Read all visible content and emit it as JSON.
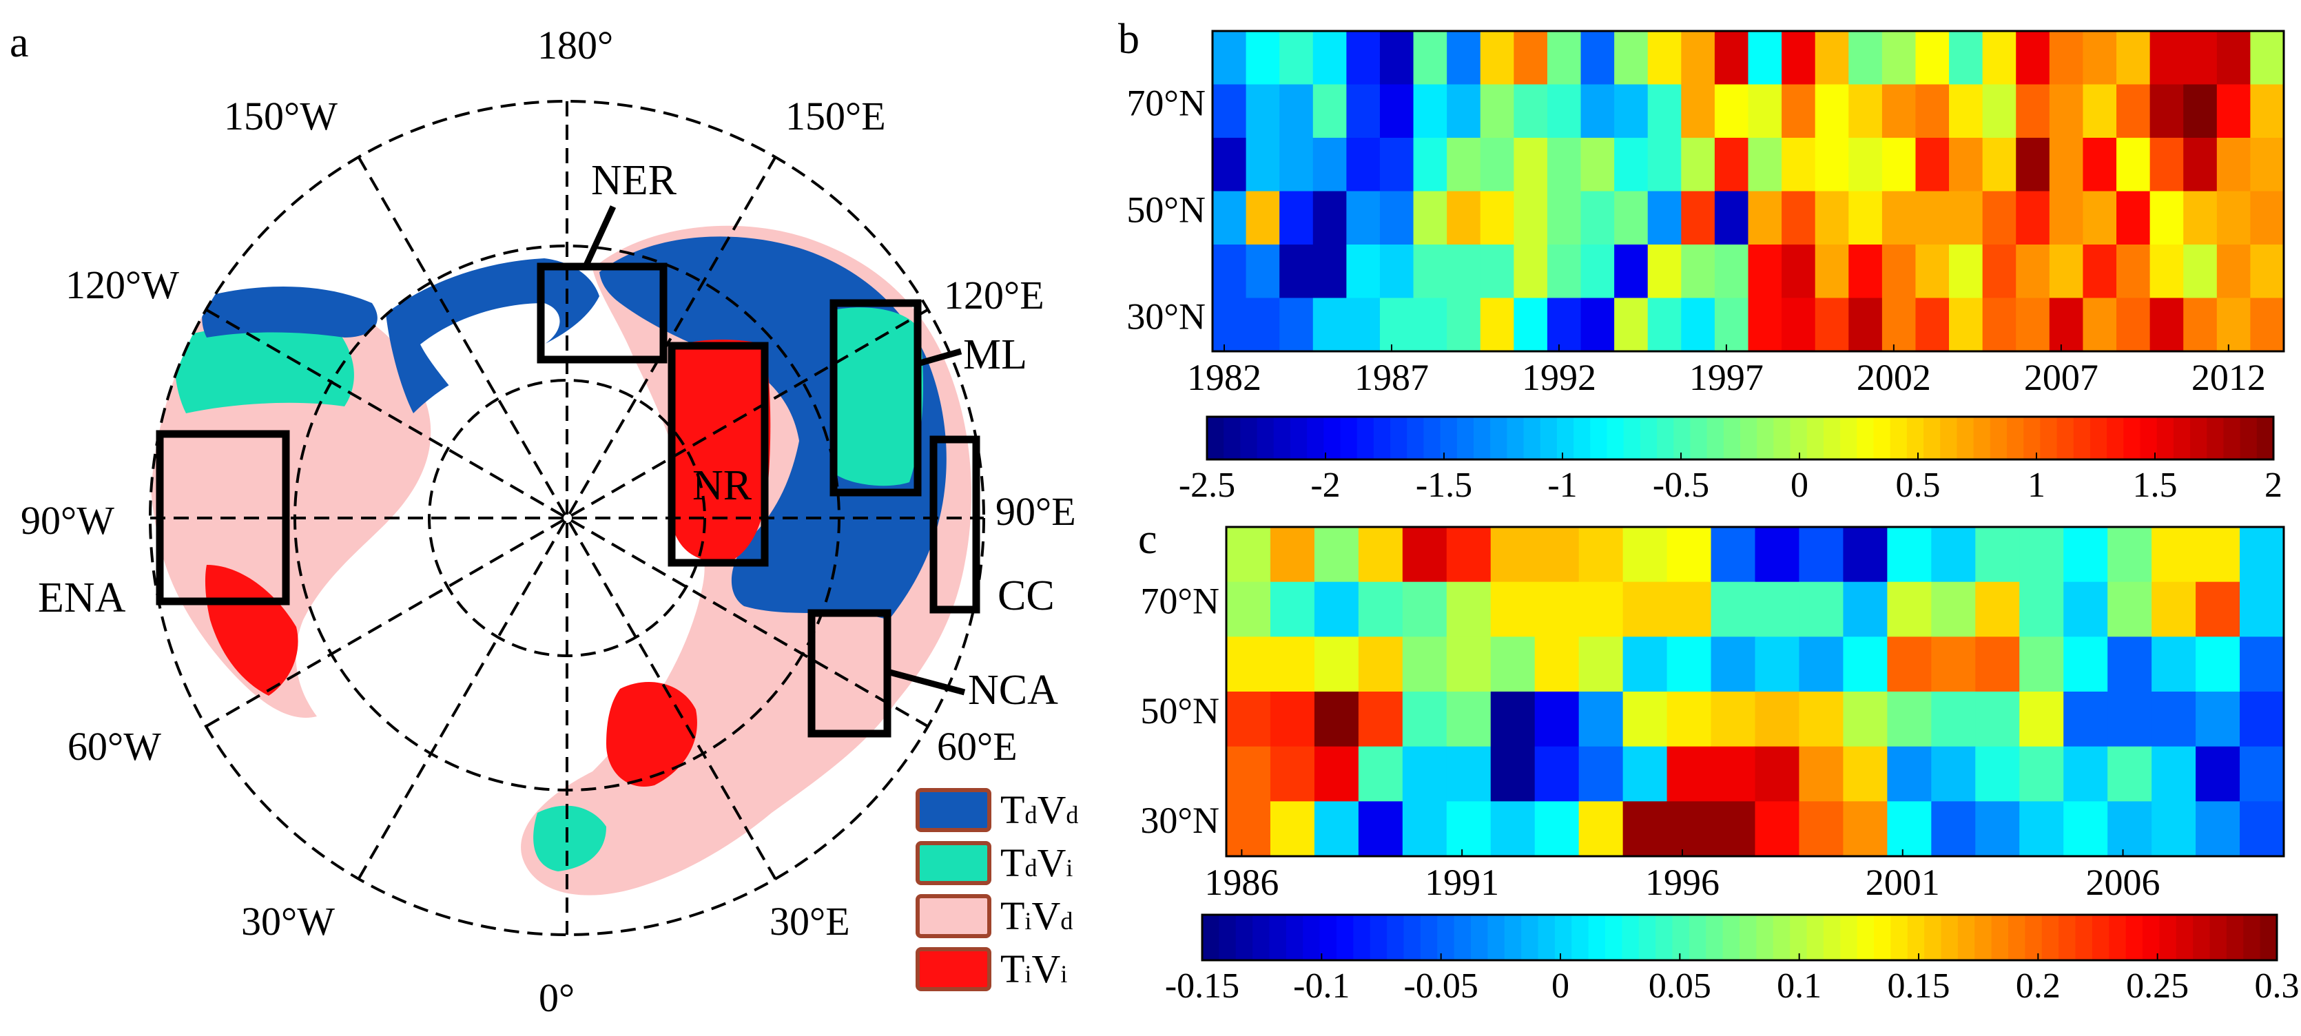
{
  "panel_a": {
    "panel_label": "a",
    "lon_labels": [
      "180°",
      "150°E",
      "120°E",
      "90°E",
      "60°E",
      "30°E",
      "0°",
      "30°W",
      "60°W",
      "90°W",
      "120°W",
      "150°W"
    ],
    "regions": [
      "NER",
      "ML",
      "NR",
      "CC",
      "NCA",
      "ENA"
    ],
    "legend": [
      {
        "main": "T",
        "sub": "d",
        "main2": "V",
        "sub2": "d",
        "color": "#1259b8"
      },
      {
        "main": "T",
        "sub": "d",
        "main2": "V",
        "sub2": "i",
        "color": "#19e0b4"
      },
      {
        "main": "T",
        "sub": "i",
        "main2": "V",
        "sub2": "d",
        "color": "#fbc6c6"
      },
      {
        "main": "T",
        "sub": "i",
        "main2": "V",
        "sub2": "i",
        "color": "#ff1010"
      }
    ]
  },
  "chart_data": [
    {
      "type": "heatmap",
      "panel": "b",
      "title": "",
      "x": [
        1982,
        1983,
        1984,
        1985,
        1986,
        1987,
        1988,
        1989,
        1990,
        1991,
        1992,
        1993,
        1994,
        1995,
        1996,
        1997,
        1998,
        1999,
        2000,
        2001,
        2002,
        2003,
        2004,
        2005,
        2006,
        2007,
        2008,
        2009,
        2010,
        2011,
        2012,
        2013
      ],
      "x_tick_labels": [
        "1982",
        "1987",
        "1992",
        "1997",
        "2002",
        "2007",
        "2012"
      ],
      "y_tick_labels": [
        "70°N",
        "50°N",
        "30°N"
      ],
      "rows_top_to_bottom": [
        "row1",
        "row2",
        "row3",
        "row4",
        "row5",
        "row6"
      ],
      "values": [
        [
          -1.2,
          -0.8,
          -0.6,
          -0.9,
          -1.8,
          -2.2,
          -0.4,
          -1.4,
          0.5,
          0.9,
          -0.3,
          -1.5,
          -0.2,
          0.4,
          0.7,
          1.6,
          -0.8,
          1.5,
          0.6,
          -0.3,
          -0.1,
          0.3,
          -0.5,
          0.4,
          1.5,
          0.9,
          0.8,
          0.6,
          1.6,
          1.6,
          1.7,
          0.0
        ],
        [
          -1.6,
          -1.1,
          -1.2,
          -0.5,
          -1.7,
          -2.0,
          -0.9,
          -1.1,
          -0.2,
          -0.5,
          -0.6,
          -1.2,
          -1.1,
          -0.6,
          0.7,
          0.3,
          0.2,
          0.9,
          0.3,
          0.5,
          0.8,
          0.9,
          0.4,
          0.1,
          1.0,
          0.8,
          0.5,
          1.0,
          1.8,
          2.0,
          1.4,
          0.6
        ],
        [
          -2.2,
          -1.1,
          -1.2,
          -1.3,
          -1.8,
          -1.7,
          -0.7,
          -0.2,
          -0.3,
          0.1,
          -0.3,
          -0.1,
          -0.7,
          -0.6,
          0.0,
          1.3,
          -0.1,
          0.4,
          0.3,
          0.2,
          0.3,
          1.3,
          0.8,
          0.5,
          1.9,
          0.8,
          1.4,
          0.3,
          1.1,
          1.7,
          0.8,
          0.7
        ],
        [
          -1.2,
          0.6,
          -1.8,
          -2.3,
          -1.3,
          -1.4,
          0.0,
          0.6,
          0.4,
          0.1,
          -0.3,
          -0.5,
          -0.3,
          -1.3,
          1.2,
          -2.2,
          0.7,
          1.1,
          0.6,
          0.4,
          0.7,
          0.7,
          0.7,
          1.0,
          1.3,
          0.8,
          0.7,
          1.4,
          0.3,
          0.6,
          0.7,
          0.8
        ],
        [
          -1.6,
          -1.4,
          -2.3,
          -2.3,
          -0.9,
          -1.0,
          -0.5,
          -0.5,
          -0.5,
          0.1,
          -0.4,
          -0.6,
          -2.0,
          0.2,
          -0.2,
          -0.3,
          1.4,
          1.6,
          0.7,
          1.4,
          0.9,
          0.6,
          0.2,
          1.1,
          0.8,
          0.6,
          1.3,
          0.9,
          0.4,
          0.1,
          0.8,
          0.6
        ],
        [
          -1.6,
          -1.6,
          -1.5,
          -1.0,
          -1.0,
          -0.6,
          -0.6,
          -0.5,
          0.4,
          -0.8,
          -1.8,
          -2.0,
          0.1,
          -0.6,
          -0.9,
          -0.4,
          1.4,
          1.5,
          1.2,
          1.7,
          0.9,
          1.2,
          0.5,
          1.0,
          0.9,
          1.6,
          0.8,
          1.0,
          1.6,
          0.9,
          0.7,
          0.9
        ]
      ],
      "colorbar": {
        "min": -2.5,
        "max": 2,
        "tick_labels": [
          "-2.5",
          "-2",
          "-1.5",
          "-1",
          "-0.5",
          "0",
          "0.5",
          "1",
          "1.5",
          "2"
        ],
        "tick_values": [
          -2.5,
          -2,
          -1.5,
          -1,
          -0.5,
          0,
          0.5,
          1,
          1.5,
          2
        ]
      }
    },
    {
      "type": "heatmap",
      "panel": "c",
      "title": "",
      "x": [
        1986,
        1987,
        1988,
        1989,
        1990,
        1991,
        1992,
        1993,
        1994,
        1995,
        1996,
        1997,
        1998,
        1999,
        2000,
        2001,
        2002,
        2003,
        2004,
        2005,
        2006,
        2007,
        2008,
        2009
      ],
      "x_tick_labels": [
        "1986",
        "1991",
        "1996",
        "2001",
        "2006"
      ],
      "y_tick_labels": [
        "70°N",
        "50°N",
        "30°N"
      ],
      "rows_top_to_bottom": [
        "row1",
        "row2",
        "row3",
        "row4",
        "row5",
        "row6"
      ],
      "values": [
        [
          0.1,
          0.17,
          0.08,
          0.15,
          0.26,
          0.23,
          0.16,
          0.16,
          0.15,
          0.12,
          0.13,
          -0.05,
          -0.1,
          -0.06,
          -0.12,
          0.02,
          0.0,
          0.05,
          0.05,
          0.02,
          0.07,
          0.14,
          0.14,
          0.0
        ],
        [
          0.09,
          0.04,
          0.0,
          0.05,
          0.06,
          0.1,
          0.14,
          0.14,
          0.14,
          0.15,
          0.15,
          0.05,
          0.05,
          0.05,
          -0.01,
          0.11,
          0.09,
          0.15,
          0.05,
          0.0,
          0.08,
          0.15,
          0.21,
          0.0
        ],
        [
          0.14,
          0.14,
          0.12,
          0.15,
          0.08,
          0.1,
          0.08,
          0.14,
          0.11,
          0.0,
          0.02,
          -0.02,
          0.0,
          -0.02,
          0.02,
          0.2,
          0.19,
          0.2,
          0.07,
          0.02,
          -0.05,
          0.0,
          0.02,
          -0.05
        ],
        [
          0.22,
          0.23,
          0.3,
          0.22,
          0.05,
          0.07,
          -0.14,
          -0.1,
          -0.03,
          0.12,
          0.14,
          0.15,
          0.16,
          0.15,
          0.1,
          0.07,
          0.05,
          0.05,
          0.12,
          -0.05,
          -0.05,
          -0.05,
          -0.03,
          -0.07
        ],
        [
          0.2,
          0.22,
          0.25,
          0.05,
          0.0,
          0.0,
          -0.14,
          -0.08,
          -0.05,
          0.0,
          0.25,
          0.25,
          0.26,
          0.18,
          0.15,
          -0.03,
          -0.01,
          0.03,
          0.05,
          0.0,
          0.05,
          0.0,
          -0.11,
          -0.05
        ],
        [
          0.2,
          0.14,
          0.0,
          -0.1,
          0.0,
          0.02,
          0.0,
          0.02,
          0.14,
          0.29,
          0.29,
          0.29,
          0.24,
          0.2,
          0.18,
          0.02,
          -0.05,
          -0.03,
          0.0,
          0.02,
          -0.01,
          0.0,
          -0.03,
          -0.06
        ]
      ],
      "colorbar": {
        "min": -0.15,
        "max": 0.3,
        "tick_labels": [
          "-0.15",
          "-0.1",
          "-0.05",
          "0",
          "0.05",
          "0.1",
          "0.15",
          "0.2",
          "0.25",
          "0.3"
        ],
        "tick_values": [
          -0.15,
          -0.1,
          -0.05,
          0,
          0.05,
          0.1,
          0.15,
          0.2,
          0.25,
          0.3
        ]
      }
    }
  ]
}
